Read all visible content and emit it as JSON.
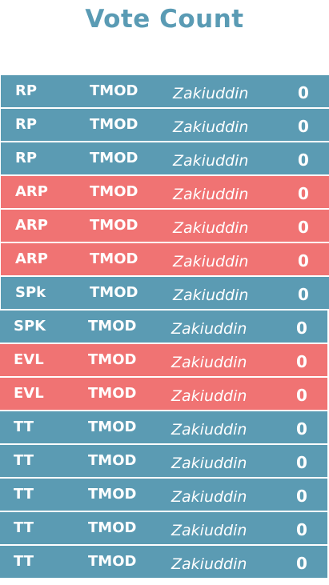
{
  "title": "Vote Count",
  "colors": {
    "title": "#5a9bb4",
    "blue_row": "#5b9bb3",
    "red_row": "#f07373",
    "text": "#ffffff"
  },
  "rows": [
    {
      "code": "RP",
      "org": "TMOD",
      "name": "Zakiuddin",
      "count": "0",
      "color": "blue"
    },
    {
      "code": "RP",
      "org": "TMOD",
      "name": "Zakiuddin",
      "count": "0",
      "color": "blue"
    },
    {
      "code": "RP",
      "org": "TMOD",
      "name": "Zakiuddin",
      "count": "0",
      "color": "blue"
    },
    {
      "code": "ARP",
      "org": "TMOD",
      "name": "Zakiuddin",
      "count": "0",
      "color": "red"
    },
    {
      "code": "ARP",
      "org": "TMOD",
      "name": "Zakiuddin",
      "count": "0",
      "color": "red"
    },
    {
      "code": "ARP",
      "org": "TMOD",
      "name": "Zakiuddin",
      "count": "0",
      "color": "red"
    },
    {
      "code": "SPk",
      "org": "TMOD",
      "name": "Zakiuddin",
      "count": "0",
      "color": "blue"
    },
    {
      "code": "SPK",
      "org": "TMOD",
      "name": "Zakiuddin",
      "count": "0",
      "color": "blue"
    },
    {
      "code": "EVL",
      "org": "TMOD",
      "name": "Zakiuddin",
      "count": "0",
      "color": "red"
    },
    {
      "code": "EVL",
      "org": "TMOD",
      "name": "Zakiuddin",
      "count": "0",
      "color": "red"
    },
    {
      "code": "TT",
      "org": "TMOD",
      "name": "Zakiuddin",
      "count": "0",
      "color": "blue"
    },
    {
      "code": "TT",
      "org": "TMOD",
      "name": "Zakiuddin",
      "count": "0",
      "color": "blue"
    },
    {
      "code": "TT",
      "org": "TMOD",
      "name": "Zakiuddin",
      "count": "0",
      "color": "blue"
    },
    {
      "code": "TT",
      "org": "TMOD",
      "name": "Zakiuddin",
      "count": "0",
      "color": "blue"
    },
    {
      "code": "TT",
      "org": "TMOD",
      "name": "Zakiuddin",
      "count": "0",
      "color": "blue"
    }
  ]
}
